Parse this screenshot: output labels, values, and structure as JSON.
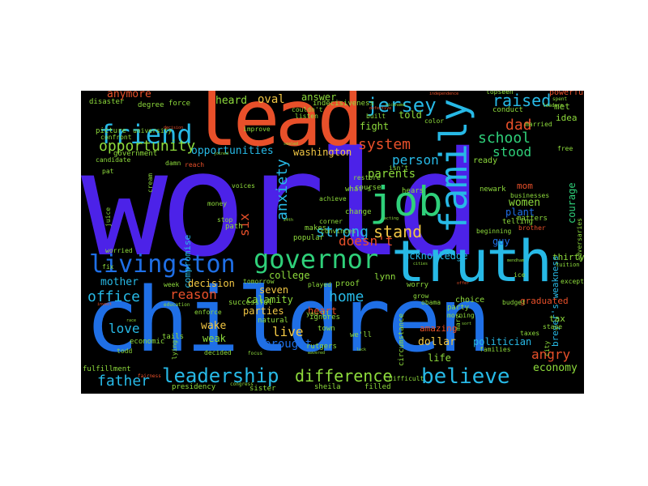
{
  "palette": {
    "background": "#000000",
    "page": "#ffffff",
    "purple": "#4c22e8",
    "orange": "#e8502a",
    "blue": "#1f6fe6",
    "cyan": "#27b9e6",
    "green": "#2fd07a",
    "lime": "#8edb3c",
    "teal": "#1fd0b0",
    "yellow": "#f2c744"
  },
  "words": {
    "world": "world",
    "children": "children",
    "lead": "lead",
    "truth": "truth",
    "family": "family",
    "job": "job",
    "livingston": "livingston",
    "governor": "governor",
    "friend": "friend",
    "leadership": "leadership",
    "difference": "difference",
    "believe": "believe",
    "jersey": "jersey",
    "raised": "raised",
    "school": "school",
    "dad": "dad",
    "opportunity": "opportunity",
    "opportunities": "opportunities",
    "system": "system",
    "stood": "stood",
    "anxiety": "anxiety",
    "stand": "stand",
    "strong": "strong",
    "person": "person",
    "parents": "parents",
    "doesnt": "doesn't",
    "office": "office",
    "reason": "reason",
    "home": "home",
    "mother": "mother",
    "father": "father",
    "love": "love",
    "live": "live",
    "brought": "brought",
    "heard": "heard",
    "oval": "oval",
    "anymore": "anymore",
    "answer": "answer",
    "washington": "washington",
    "six": "six",
    "fight": "fight",
    "told": "told",
    "women": "women",
    "mom": "mom",
    "plant": "plant",
    "angry": "angry",
    "economy": "economy",
    "courage": "courage",
    "acknowledge": "acknowledge",
    "compromise": "compromise",
    "decision": "decision",
    "wake": "wake",
    "weak": "weak",
    "heart": "heart",
    "calamity": "calamity",
    "parties": "parties",
    "seven": "seven",
    "college": "college",
    "lynn": "lynn",
    "amazing": "amazing",
    "dollar": "dollar",
    "life": "life",
    "politician": "politician",
    "thirty": "thirty",
    "brevers_weakness": "breyer's weakness",
    "graduated": "graduated",
    "tax": "tax",
    "guy": "guy",
    "met": "met",
    "idea": "idea",
    "powerful": "powerful",
    "topseen": "topseen",
    "conduct": "conduct",
    "married": "married",
    "indecisiveness": "indecisiveness",
    "degree": "degree",
    "force": "force",
    "disaster": "disaster",
    "picture": "picture",
    "university": "university",
    "improve": "improve",
    "listen": "listen",
    "built": "built",
    "government": "government",
    "candidate": "candidate",
    "ready": "ready",
    "newark": "newark",
    "telling": "telling",
    "matters": "matters",
    "brother": "brother",
    "businesses": "businesses",
    "course": "course",
    "restore": "restore",
    "hears": "hears",
    "change": "change",
    "whats": "what's",
    "convinces": "convinces",
    "makes": "makes",
    "popular": "popular",
    "path": "path",
    "stop": "stop",
    "money": "money",
    "voices": "voices",
    "worried": "worried",
    "fix": "fix",
    "successful": "successful",
    "tomorrow": "tomorrow",
    "natural": "natural",
    "ignores": "ignores",
    "town": "town",
    "well": "we'll",
    "rutgers": "rutgers",
    "filled": "filled",
    "sheila": "sheila",
    "sister": "sister",
    "presidency": "presidency",
    "fulfillment": "fulfillment",
    "economic": "economic",
    "todd": "todd",
    "decided": "decided",
    "tails": "tails",
    "lying": "lying",
    "juice": "juice",
    "cream": "cream",
    "pat": "pat",
    "reach": "reach",
    "free": "free",
    "color": "color",
    "proof": "proof",
    "played": "played",
    "worry": "worry",
    "choice": "choice",
    "party": "party",
    "obama": "obama",
    "grow": "grow",
    "circumstance": "circumstance",
    "beginning": "beginning",
    "mary": "mary",
    "taxes": "taxes",
    "families": "families",
    "budget": "budget",
    "stage": "stage",
    "city": "city",
    "except": "except",
    "ice": "ice",
    "adversaries": "adversaries",
    "tuition": "tuition",
    "week": "week",
    "enforce": "enforce",
    "confront": "confront",
    "damn": "damn",
    "achieve": "achieve",
    "isnt": "isn't",
    "corner": "corner",
    "youll": "you'll",
    "couldnt": "couldn't",
    "morning": "morning",
    "difficult": "difficult",
    "focus": "focus",
    "education": "education",
    "congress": "congress",
    "fairness": "fairness",
    "spent": "spent",
    "leaders": "leaders",
    "tiny_1": "decision",
    "tiny_2": "nickname",
    "tiny_3": "defective",
    "tiny_4": "independence",
    "tiny_5": "sort",
    "tiny_6": "offer",
    "tiny_7": "mendham",
    "tiny_8": "joined",
    "tiny_9": "acting",
    "tiny_10": "lack",
    "tiny_11": "cities",
    "tiny_12": "wavered",
    "tiny_13": "sealed",
    "tiny_14": "24th",
    "tiny_15": "race",
    "tiny_16": "invest"
  }
}
